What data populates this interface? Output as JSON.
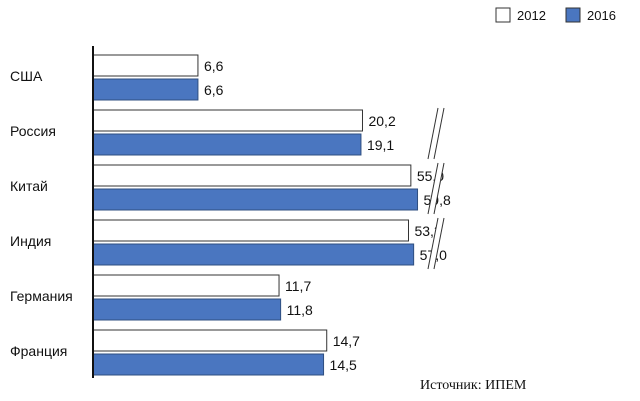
{
  "chart_data": {
    "type": "bar",
    "orientation": "horizontal",
    "categories": [
      "США",
      "Россия",
      "Китай",
      "Индия",
      "Германия",
      "Франция"
    ],
    "series": [
      {
        "name": "2012",
        "values": [
          6.6,
          20.2,
          55.0,
          53.3,
          11.7,
          14.7
        ],
        "labels": [
          "6,6",
          "20,2",
          "55,0",
          "53,3",
          "11,7",
          "14,7"
        ],
        "color": "#ffffff"
      },
      {
        "name": "2016",
        "values": [
          6.6,
          19.1,
          59.8,
          57.0,
          11.8,
          14.5
        ],
        "labels": [
          "6,6",
          "19,1",
          "59,8",
          "57,0",
          "11,8",
          "14,5"
        ],
        "color": "#4a76c0"
      }
    ],
    "axis_break": true,
    "grid": false,
    "legend_position": "top-right",
    "source": "Источник: ИПЕМ"
  }
}
